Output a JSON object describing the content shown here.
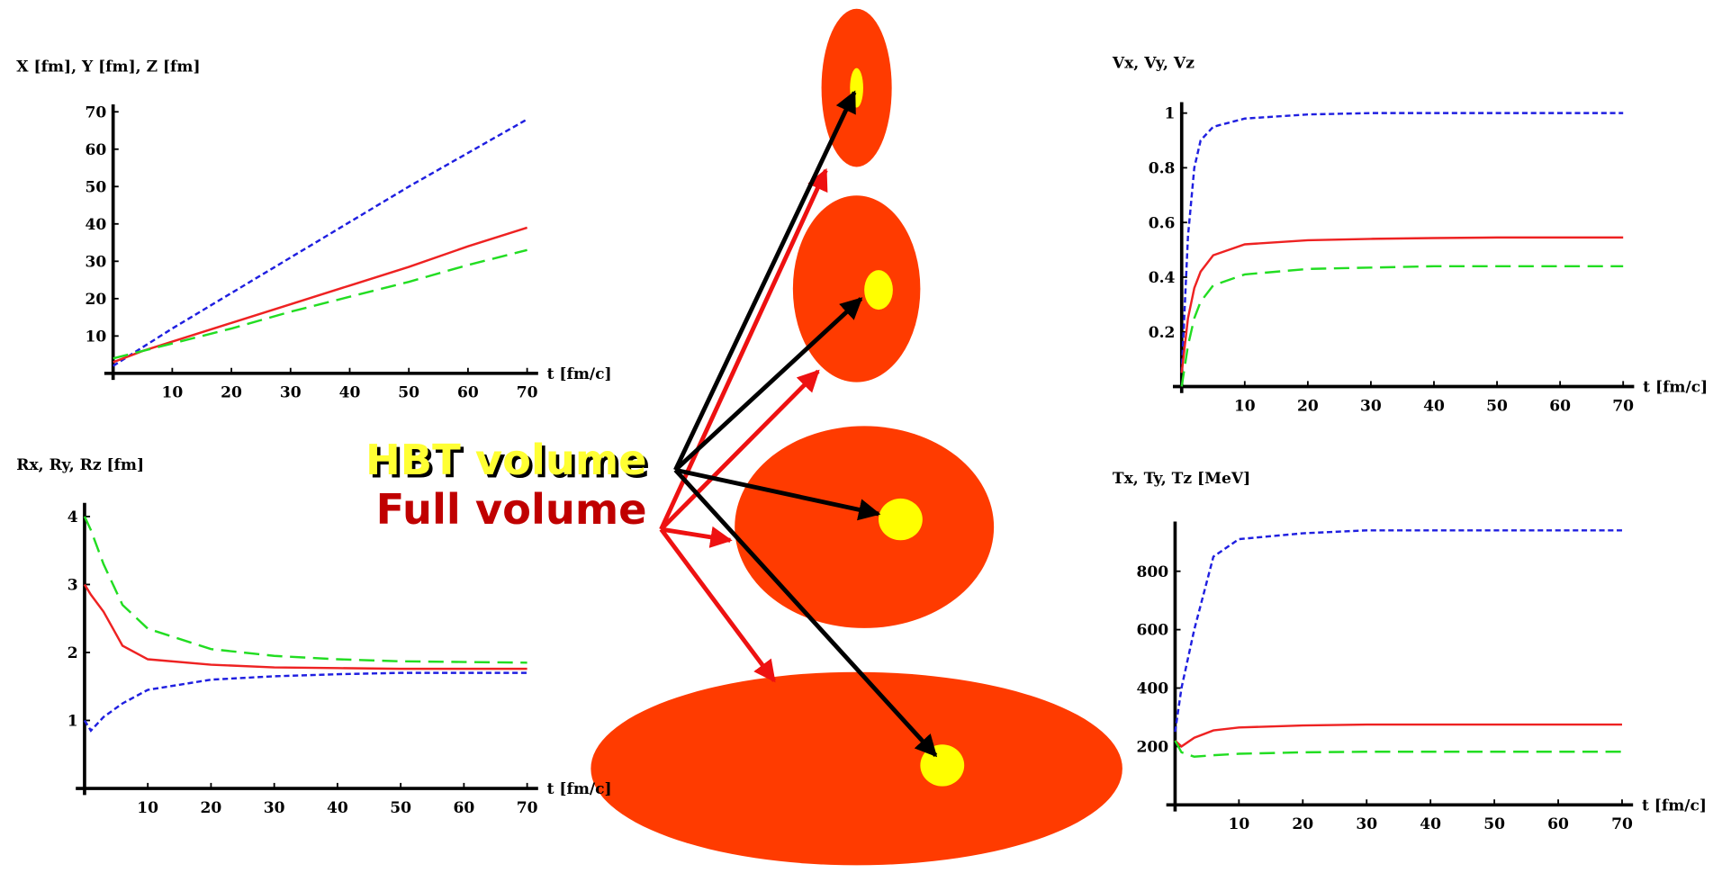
{
  "chart_data": [
    {
      "type": "line",
      "title": "X [fm], Y [fm], Z [fm]",
      "x_label": "t [fm/c]",
      "x": [
        0,
        5,
        10,
        20,
        30,
        40,
        50,
        60,
        70
      ],
      "xlim": [
        0,
        70
      ],
      "xticks": [
        10,
        20,
        30,
        40,
        50,
        60,
        70
      ],
      "ylim": [
        0,
        72
      ],
      "yticks": [
        10,
        20,
        30,
        40,
        50,
        60,
        70
      ],
      "series": [
        {
          "color": "#1f1fe0",
          "dash": "short",
          "values": [
            2,
            7,
            12,
            21.5,
            31,
            40.5,
            50,
            59,
            68
          ]
        },
        {
          "color": "#ee2222",
          "dash": "solid",
          "values": [
            3,
            6,
            8.5,
            13.5,
            18.5,
            23.5,
            28.5,
            34,
            39
          ]
        },
        {
          "color": "#22dd22",
          "dash": "long",
          "values": [
            4,
            6,
            8,
            12,
            16.5,
            20.5,
            24.5,
            29,
            33
          ]
        }
      ]
    },
    {
      "type": "line",
      "title": "Vx, Vy, Vz",
      "x_label": "t [fm/c]",
      "x": [
        0,
        1,
        2,
        3,
        5,
        10,
        20,
        30,
        40,
        50,
        60,
        70
      ],
      "xlim": [
        0,
        70
      ],
      "xticks": [
        10,
        20,
        30,
        40,
        50,
        60,
        70
      ],
      "ylim": [
        0,
        1.04
      ],
      "yticks": [
        0.2,
        0.4,
        0.6,
        0.8,
        1
      ],
      "series": [
        {
          "color": "#1f1fe0",
          "dash": "short",
          "values": [
            0.05,
            0.55,
            0.8,
            0.9,
            0.95,
            0.98,
            0.995,
            1,
            1,
            1,
            1,
            1
          ]
        },
        {
          "color": "#ee2222",
          "dash": "solid",
          "values": [
            0.05,
            0.25,
            0.36,
            0.42,
            0.48,
            0.52,
            0.535,
            0.54,
            0.543,
            0.545,
            0.545,
            0.545
          ]
        },
        {
          "color": "#22dd22",
          "dash": "long",
          "values": [
            0,
            0.15,
            0.25,
            0.31,
            0.37,
            0.41,
            0.43,
            0.435,
            0.44,
            0.44,
            0.44,
            0.44
          ]
        }
      ]
    },
    {
      "type": "line",
      "title": "Rx, Ry, Rz [fm]",
      "x_label": "t [fm/c]",
      "x": [
        0,
        1,
        3,
        6,
        10,
        20,
        30,
        40,
        50,
        60,
        70
      ],
      "xlim": [
        0,
        70
      ],
      "xticks": [
        10,
        20,
        30,
        40,
        50,
        60,
        70
      ],
      "ylim": [
        0,
        4.2
      ],
      "yticks": [
        1,
        2,
        3,
        4
      ],
      "series": [
        {
          "color": "#1f1fe0",
          "dash": "short",
          "values": [
            1,
            0.85,
            1.05,
            1.25,
            1.45,
            1.6,
            1.65,
            1.68,
            1.7,
            1.7,
            1.7
          ]
        },
        {
          "color": "#ee2222",
          "dash": "solid",
          "values": [
            3,
            2.85,
            2.6,
            2.1,
            1.9,
            1.82,
            1.78,
            1.77,
            1.76,
            1.76,
            1.76
          ]
        },
        {
          "color": "#22dd22",
          "dash": "long",
          "values": [
            4,
            3.8,
            3.3,
            2.7,
            2.35,
            2.05,
            1.95,
            1.9,
            1.87,
            1.86,
            1.85
          ]
        }
      ]
    },
    {
      "type": "line",
      "title": "Tx, Ty, Tz [MeV]",
      "x_label": "t [fm/c]",
      "x": [
        0,
        1,
        3,
        6,
        10,
        20,
        30,
        40,
        50,
        60,
        70
      ],
      "xlim": [
        0,
        70
      ],
      "xticks": [
        10,
        20,
        30,
        40,
        50,
        60,
        70
      ],
      "ylim": [
        0,
        970
      ],
      "yticks": [
        200,
        400,
        600,
        800
      ],
      "series": [
        {
          "color": "#1f1fe0",
          "dash": "short",
          "values": [
            250,
            400,
            600,
            850,
            910,
            930,
            940,
            940,
            940,
            940,
            940
          ]
        },
        {
          "color": "#ee2222",
          "dash": "solid",
          "values": [
            220,
            200,
            230,
            255,
            265,
            272,
            275,
            275,
            275,
            275,
            275
          ]
        },
        {
          "color": "#22dd22",
          "dash": "long",
          "values": [
            220,
            180,
            165,
            170,
            175,
            180,
            182,
            182,
            182,
            182,
            182
          ]
        }
      ]
    }
  ],
  "diagram": {
    "labels": [
      "HBT volume",
      "Full volume"
    ]
  }
}
